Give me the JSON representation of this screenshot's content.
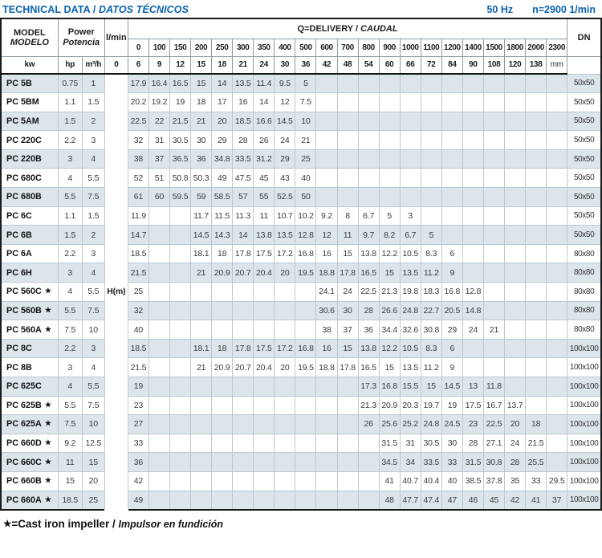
{
  "header": {
    "title_en": "TECHNICAL DATA",
    "title_sep": " / ",
    "title_es": "DATOS TÉCNICOS",
    "frequency": "50 Hz",
    "speed": "n=2900 1/min"
  },
  "table": {
    "model_header_en": "MODEL",
    "model_header_es": "MODELO",
    "power_header_en": "Power",
    "power_header_es": "Potencia",
    "power_units": [
      "kw",
      "hp"
    ],
    "flow_unit_lmin": "l/min",
    "flow_unit_m3h": "m³/h",
    "delivery_header_en": "Q=DELIVERY",
    "delivery_header_sep": " / ",
    "delivery_header_es": "CAUDAL",
    "head_unit": "H(m)",
    "dn_header": "DN",
    "dn_unit": "mm",
    "flow_lmin": [
      "0",
      "100",
      "150",
      "200",
      "250",
      "300",
      "350",
      "400",
      "500",
      "600",
      "700",
      "800",
      "900",
      "1000",
      "1100",
      "1200",
      "1400",
      "1500",
      "1800",
      "2000",
      "2300"
    ],
    "flow_m3h": [
      "0",
      "6",
      "9",
      "12",
      "15",
      "18",
      "21",
      "24",
      "30",
      "36",
      "42",
      "48",
      "54",
      "60",
      "66",
      "72",
      "84",
      "90",
      "108",
      "120",
      "138"
    ],
    "rows": [
      {
        "model": "PC 5B",
        "star": false,
        "kw": "0.75",
        "hp": "1",
        "dn": "50x50",
        "values": [
          "17.9",
          "16.4",
          "16.5",
          "15",
          "14",
          "13.5",
          "11.4",
          "9.5",
          "5",
          "",
          "",
          "",
          "",
          "",
          "",
          "",
          "",
          "",
          "",
          "",
          ""
        ]
      },
      {
        "model": "PC 5BM",
        "star": false,
        "kw": "1.1",
        "hp": "1.5",
        "dn": "50x50",
        "values": [
          "20.2",
          "19.2",
          "19",
          "18",
          "17",
          "16",
          "14",
          "12",
          "7.5",
          "",
          "",
          "",
          "",
          "",
          "",
          "",
          "",
          "",
          "",
          "",
          ""
        ]
      },
      {
        "model": "PC 5AM",
        "star": false,
        "kw": "1.5",
        "hp": "2",
        "dn": "50x50",
        "values": [
          "22.5",
          "22",
          "21.5",
          "21",
          "20",
          "18.5",
          "16.6",
          "14.5",
          "10",
          "",
          "",
          "",
          "",
          "",
          "",
          "",
          "",
          "",
          "",
          "",
          ""
        ]
      },
      {
        "model": "PC 220C",
        "star": false,
        "kw": "2.2",
        "hp": "3",
        "dn": "50x50",
        "values": [
          "32",
          "31",
          "30.5",
          "30",
          "29",
          "28",
          "26",
          "24",
          "21",
          "",
          "",
          "",
          "",
          "",
          "",
          "",
          "",
          "",
          "",
          "",
          ""
        ]
      },
      {
        "model": "PC 220B",
        "star": false,
        "kw": "3",
        "hp": "4",
        "dn": "50x50",
        "values": [
          "38",
          "37",
          "36.5",
          "36",
          "34.8",
          "33.5",
          "31.2",
          "29",
          "25",
          "",
          "",
          "",
          "",
          "",
          "",
          "",
          "",
          "",
          "",
          "",
          ""
        ]
      },
      {
        "model": "PC 680C",
        "star": false,
        "kw": "4",
        "hp": "5.5",
        "dn": "50x50",
        "values": [
          "52",
          "51",
          "50.8",
          "50.3",
          "49",
          "47.5",
          "45",
          "43",
          "40",
          "",
          "",
          "",
          "",
          "",
          "",
          "",
          "",
          "",
          "",
          "",
          ""
        ]
      },
      {
        "model": "PC 680B",
        "star": false,
        "kw": "5.5",
        "hp": "7.5",
        "dn": "50x50",
        "values": [
          "61",
          "60",
          "59.5",
          "59",
          "58.5",
          "57",
          "55",
          "52.5",
          "50",
          "",
          "",
          "",
          "",
          "",
          "",
          "",
          "",
          "",
          "",
          "",
          ""
        ]
      },
      {
        "model": "PC 6C",
        "star": false,
        "kw": "1.1",
        "hp": "1.5",
        "dn": "50x50",
        "values": [
          "11.9",
          "",
          "",
          "11.7",
          "11.5",
          "11.3",
          "11",
          "10.7",
          "10.2",
          "9.2",
          "8",
          "6.7",
          "5",
          "3",
          "",
          "",
          "",
          "",
          "",
          "",
          ""
        ]
      },
      {
        "model": "PC 6B",
        "star": false,
        "kw": "1.5",
        "hp": "2",
        "dn": "50x50",
        "values": [
          "14.7",
          "",
          "",
          "14.5",
          "14.3",
          "14",
          "13.8",
          "13.5",
          "12.8",
          "12",
          "11",
          "9.7",
          "8.2",
          "6.7",
          "5",
          "",
          "",
          "",
          "",
          "",
          ""
        ]
      },
      {
        "model": "PC 6A",
        "star": false,
        "kw": "2.2",
        "hp": "3",
        "dn": "80x80",
        "values": [
          "18.5",
          "",
          "",
          "18.1",
          "18",
          "17.8",
          "17.5",
          "17.2",
          "16.8",
          "16",
          "15",
          "13.8",
          "12.2",
          "10.5",
          "8.3",
          "6",
          "",
          "",
          "",
          "",
          ""
        ]
      },
      {
        "model": "PC 6H",
        "star": false,
        "kw": "3",
        "hp": "4",
        "dn": "80x80",
        "values": [
          "21.5",
          "",
          "",
          "21",
          "20.9",
          "20.7",
          "20.4",
          "20",
          "19.5",
          "18.8",
          "17.8",
          "16.5",
          "15",
          "13.5",
          "11.2",
          "9",
          "",
          "",
          "",
          "",
          ""
        ]
      },
      {
        "model": "PC 560C",
        "star": true,
        "kw": "4",
        "hp": "5.5",
        "dn": "80x80",
        "values": [
          "25",
          "",
          "",
          "",
          "",
          "",
          "",
          "",
          "",
          "24.1",
          "24",
          "22.5",
          "21.3",
          "19.8",
          "18.3",
          "16.8",
          "12.8",
          "",
          "",
          "",
          ""
        ]
      },
      {
        "model": "PC 560B",
        "star": true,
        "kw": "5.5",
        "hp": "7.5",
        "dn": "80x80",
        "values": [
          "32",
          "",
          "",
          "",
          "",
          "",
          "",
          "",
          "",
          "30.6",
          "30",
          "28",
          "26.6",
          "24.8",
          "22.7",
          "20.5",
          "14.8",
          "",
          "",
          "",
          ""
        ]
      },
      {
        "model": "PC 560A",
        "star": true,
        "kw": "7.5",
        "hp": "10",
        "dn": "80x80",
        "values": [
          "40",
          "",
          "",
          "",
          "",
          "",
          "",
          "",
          "",
          "38",
          "37",
          "36",
          "34.4",
          "32.6",
          "30.8",
          "29",
          "24",
          "21",
          "",
          "",
          ""
        ]
      },
      {
        "model": "PC 8C",
        "star": false,
        "kw": "2.2",
        "hp": "3",
        "dn": "100x100",
        "values": [
          "18.5",
          "",
          "",
          "18.1",
          "18",
          "17.8",
          "17.5",
          "17.2",
          "16.8",
          "16",
          "15",
          "13.8",
          "12.2",
          "10.5",
          "8.3",
          "6",
          "",
          "",
          "",
          "",
          ""
        ]
      },
      {
        "model": "PC 8B",
        "star": false,
        "kw": "3",
        "hp": "4",
        "dn": "100x100",
        "values": [
          "21.5",
          "",
          "",
          "21",
          "20.9",
          "20.7",
          "20.4",
          "20",
          "19.5",
          "18.8",
          "17.8",
          "16.5",
          "15",
          "13.5",
          "11.2",
          "9",
          "",
          "",
          "",
          "",
          ""
        ]
      },
      {
        "model": "PC 625C",
        "star": false,
        "kw": "4",
        "hp": "5.5",
        "dn": "100x100",
        "values": [
          "19",
          "",
          "",
          "",
          "",
          "",
          "",
          "",
          "",
          "",
          "",
          "17.3",
          "16.8",
          "15.5",
          "15",
          "14.5",
          "13",
          "11.8",
          "",
          "",
          ""
        ]
      },
      {
        "model": "PC 625B",
        "star": true,
        "kw": "5.5",
        "hp": "7.5",
        "dn": "100x100",
        "values": [
          "23",
          "",
          "",
          "",
          "",
          "",
          "",
          "",
          "",
          "",
          "",
          "21.3",
          "20.9",
          "20.3",
          "19.7",
          "19",
          "17.5",
          "16.7",
          "13.7",
          "",
          ""
        ]
      },
      {
        "model": "PC 625A",
        "star": true,
        "kw": "7.5",
        "hp": "10",
        "dn": "100x100",
        "values": [
          "27",
          "",
          "",
          "",
          "",
          "",
          "",
          "",
          "",
          "",
          "",
          "26",
          "25.6",
          "25.2",
          "24.8",
          "24.5",
          "23",
          "22.5",
          "20",
          "18",
          ""
        ]
      },
      {
        "model": "PC 660D",
        "star": true,
        "kw": "9.2",
        "hp": "12.5",
        "dn": "100x100",
        "values": [
          "33",
          "",
          "",
          "",
          "",
          "",
          "",
          "",
          "",
          "",
          "",
          "",
          "31.5",
          "31",
          "30.5",
          "30",
          "28",
          "27.1",
          "24",
          "21.5",
          ""
        ]
      },
      {
        "model": "PC 660C",
        "star": true,
        "kw": "11",
        "hp": "15",
        "dn": "100x100",
        "values": [
          "36",
          "",
          "",
          "",
          "",
          "",
          "",
          "",
          "",
          "",
          "",
          "",
          "34.5",
          "34",
          "33.5",
          "33",
          "31.5",
          "30.8",
          "28",
          "25.5",
          ""
        ]
      },
      {
        "model": "PC 660B",
        "star": true,
        "kw": "15",
        "hp": "20",
        "dn": "100x100",
        "values": [
          "42",
          "",
          "",
          "",
          "",
          "",
          "",
          "",
          "",
          "",
          "",
          "",
          "41",
          "40.7",
          "40.4",
          "40",
          "38.5",
          "37.8",
          "35",
          "33",
          "29.5"
        ]
      },
      {
        "model": "PC 660A",
        "star": true,
        "kw": "18.5",
        "hp": "25",
        "dn": "100x100",
        "values": [
          "49",
          "",
          "",
          "",
          "",
          "",
          "",
          "",
          "",
          "",
          "",
          "",
          "48",
          "47.7",
          "47.4",
          "47",
          "46",
          "45",
          "42",
          "41",
          "37"
        ]
      }
    ]
  },
  "footer": {
    "star": "★",
    "text_en": "=Cast iron impeller",
    "sep": " / ",
    "text_es": "Impulsor en fundición"
  },
  "colors": {
    "accent_blue": "#0a62ae",
    "row_stripe": "#dce5ea",
    "grid_line": "#bcc8d2",
    "heavy_line": "#1b1b1b"
  }
}
